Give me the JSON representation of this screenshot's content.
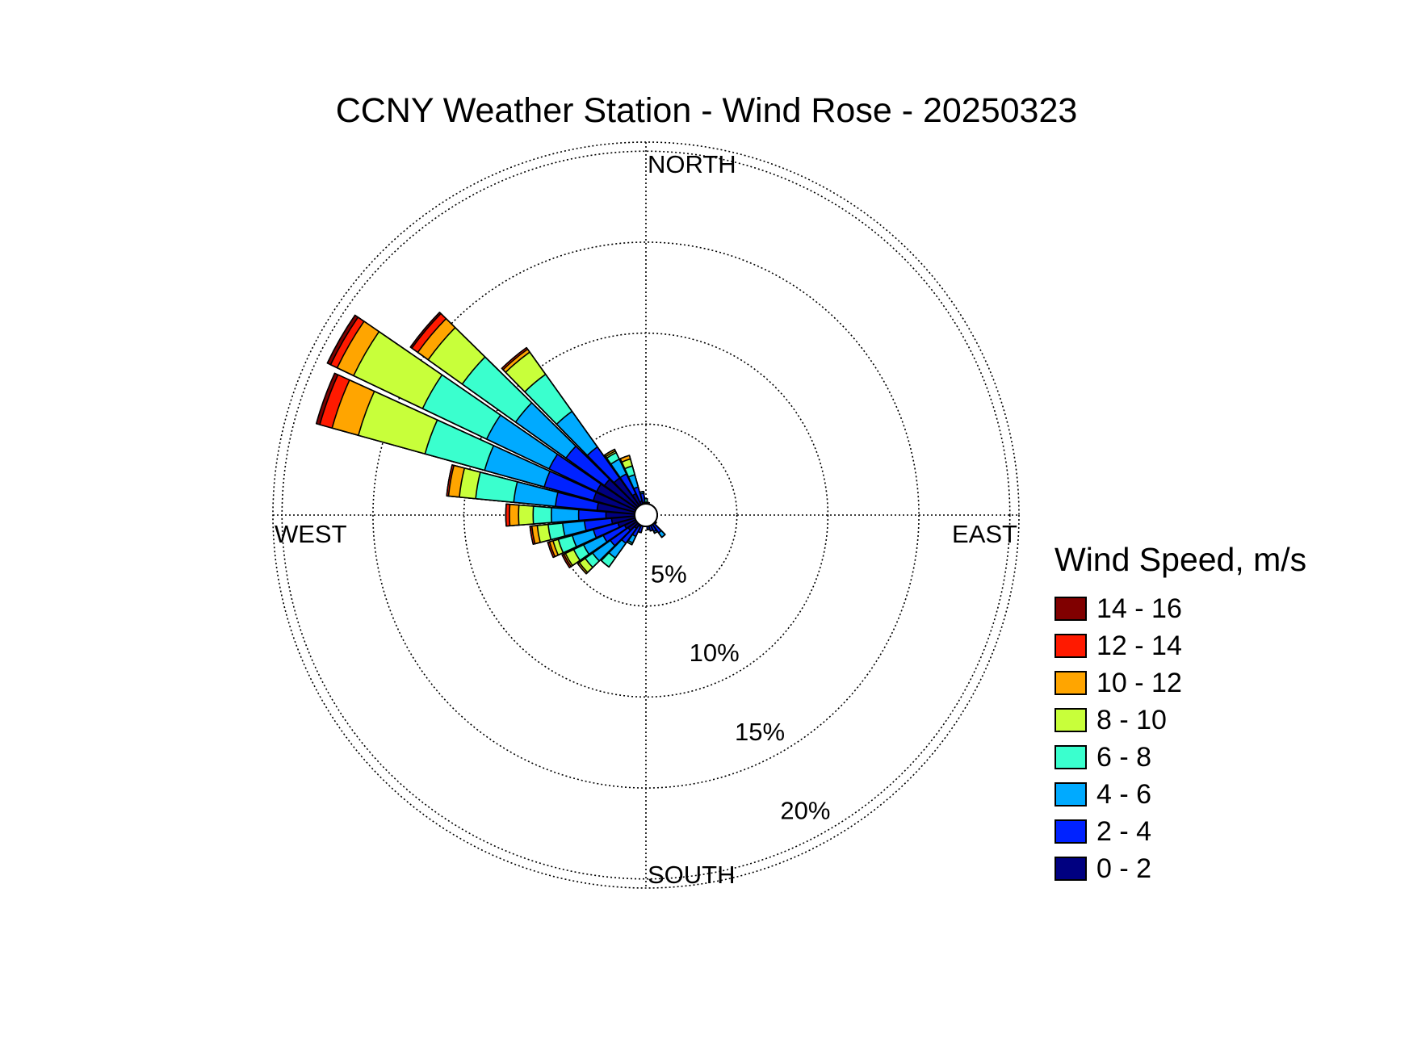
{
  "chart_data": {
    "type": "wind-rose",
    "title": "CCNY Weather Station - Wind Rose - 20250323",
    "direction_labels": {
      "north": "NORTH",
      "east": "EAST",
      "south": "SOUTH",
      "west": "WEST"
    },
    "radial_ticks": [
      5,
      10,
      15,
      20
    ],
    "radial_tick_labels": [
      "5%",
      "10%",
      "15%",
      "20%"
    ],
    "rmax": 20.5,
    "grid": true,
    "legend": {
      "title": "Wind Speed, m/s",
      "placement": "right",
      "entries": [
        {
          "label": "14 - 16",
          "color": "#800000"
        },
        {
          "label": "12 - 14",
          "color": "#ff1a00"
        },
        {
          "label": "10 - 12",
          "color": "#ffa500"
        },
        {
          "label": "8 - 10",
          "color": "#c8ff3a"
        },
        {
          "label": "6 - 8",
          "color": "#3affce"
        },
        {
          "label": "4 - 6",
          "color": "#00aaff"
        },
        {
          "label": "2 - 4",
          "color": "#0022ff"
        },
        {
          "label": "0 - 2",
          "color": "#000080"
        }
      ]
    },
    "bins": [
      "0 - 2",
      "2 - 4",
      "4 - 6",
      "6 - 8",
      "8 - 10",
      "10 - 12",
      "12 - 14",
      "14 - 16"
    ],
    "directions_deg": [
      0,
      10,
      20,
      30,
      40,
      50,
      60,
      70,
      80,
      90,
      100,
      110,
      120,
      130,
      140,
      150,
      160,
      170,
      180,
      190,
      200,
      210,
      220,
      230,
      240,
      250,
      260,
      270,
      280,
      290,
      300,
      310,
      320,
      330,
      340,
      350
    ],
    "cumulative_percent": [
      [
        0.5,
        0.6,
        0.7,
        0.9,
        0.9,
        0.9,
        0.9,
        0.9
      ],
      [
        0.5,
        0.6,
        0.7,
        0.7,
        0.7,
        0.7,
        0.7,
        0.7
      ],
      [
        0.4,
        0.5,
        0.5,
        0.5,
        0.5,
        0.5,
        0.5,
        0.5
      ],
      [
        0.4,
        0.5,
        0.5,
        0.5,
        0.5,
        0.5,
        0.5,
        0.5
      ],
      [
        0.4,
        0.4,
        0.4,
        0.4,
        0.4,
        0.4,
        0.4,
        0.4
      ],
      [
        0.4,
        0.4,
        0.4,
        0.4,
        0.4,
        0.4,
        0.4,
        0.4
      ],
      [
        0.3,
        0.3,
        0.3,
        0.3,
        0.3,
        0.3,
        0.3,
        0.3
      ],
      [
        0.3,
        0.3,
        0.3,
        0.3,
        0.3,
        0.3,
        0.3,
        0.3
      ],
      [
        0.3,
        0.3,
        0.3,
        0.3,
        0.3,
        0.3,
        0.3,
        0.3
      ],
      [
        0.3,
        0.3,
        0.3,
        0.3,
        0.3,
        0.3,
        0.3,
        0.3
      ],
      [
        0.3,
        0.3,
        0.3,
        0.3,
        0.3,
        0.3,
        0.3,
        0.3
      ],
      [
        0.3,
        0.3,
        0.3,
        0.3,
        0.3,
        0.3,
        0.3,
        0.3
      ],
      [
        0.4,
        0.5,
        0.5,
        0.5,
        0.5,
        0.5,
        0.5,
        0.5
      ],
      [
        0.5,
        0.7,
        0.7,
        0.7,
        0.7,
        0.7,
        0.7,
        0.7
      ],
      [
        0.6,
        1.2,
        1.5,
        1.5,
        1.5,
        1.5,
        1.5,
        1.5
      ],
      [
        0.5,
        1.0,
        1.1,
        1.1,
        1.1,
        1.1,
        1.1,
        1.1
      ],
      [
        0.5,
        0.9,
        0.9,
        0.9,
        0.9,
        0.9,
        0.9,
        0.9
      ],
      [
        0.5,
        0.8,
        0.8,
        0.8,
        0.8,
        0.8,
        0.8,
        0.8
      ],
      [
        0.5,
        0.6,
        0.6,
        0.6,
        0.6,
        0.6,
        0.6,
        0.6
      ],
      [
        0.4,
        0.6,
        0.6,
        0.6,
        0.6,
        0.6,
        0.6,
        0.6
      ],
      [
        0.6,
        1.0,
        1.0,
        1.0,
        1.0,
        1.0,
        1.0,
        1.0
      ],
      [
        0.7,
        1.3,
        1.7,
        1.8,
        1.8,
        1.8,
        1.8,
        1.8
      ],
      [
        0.9,
        1.9,
        2.9,
        3.5,
        3.5,
        3.5,
        3.5,
        3.5
      ],
      [
        1.2,
        2.4,
        3.6,
        4.1,
        4.5,
        4.6,
        4.6,
        4.6
      ],
      [
        1.3,
        2.6,
        3.8,
        4.4,
        4.9,
        5.0,
        5.1,
        5.1
      ],
      [
        1.6,
        3.0,
        4.2,
        5.0,
        5.3,
        5.5,
        5.6,
        5.6
      ],
      [
        1.9,
        3.4,
        4.6,
        5.4,
        6.0,
        6.3,
        6.4,
        6.4
      ],
      [
        2.2,
        3.7,
        5.2,
        6.2,
        7.0,
        7.5,
        7.7,
        7.7
      ],
      [
        2.7,
        5.0,
        7.3,
        9.4,
        10.3,
        10.9,
        11.0,
        11.0
      ],
      [
        3.0,
        5.8,
        9.2,
        12.6,
        16.4,
        17.9,
        18.6,
        18.8
      ],
      [
        3.0,
        5.9,
        9.7,
        13.6,
        17.8,
        18.8,
        19.2,
        19.4
      ],
      [
        2.8,
        5.4,
        8.8,
        12.4,
        14.7,
        15.4,
        15.8,
        15.9
      ],
      [
        2.5,
        4.6,
        7.0,
        9.5,
        11.0,
        11.2,
        11.3,
        11.3
      ],
      [
        1.3,
        2.5,
        3.4,
        3.8,
        3.9,
        4.0,
        4.0,
        4.0
      ],
      [
        0.8,
        1.6,
        2.3,
        2.8,
        3.2,
        3.4,
        3.4,
        3.4
      ],
      [
        0.7,
        1.2,
        1.3,
        1.3,
        1.3,
        1.3,
        1.3,
        1.3
      ]
    ]
  }
}
